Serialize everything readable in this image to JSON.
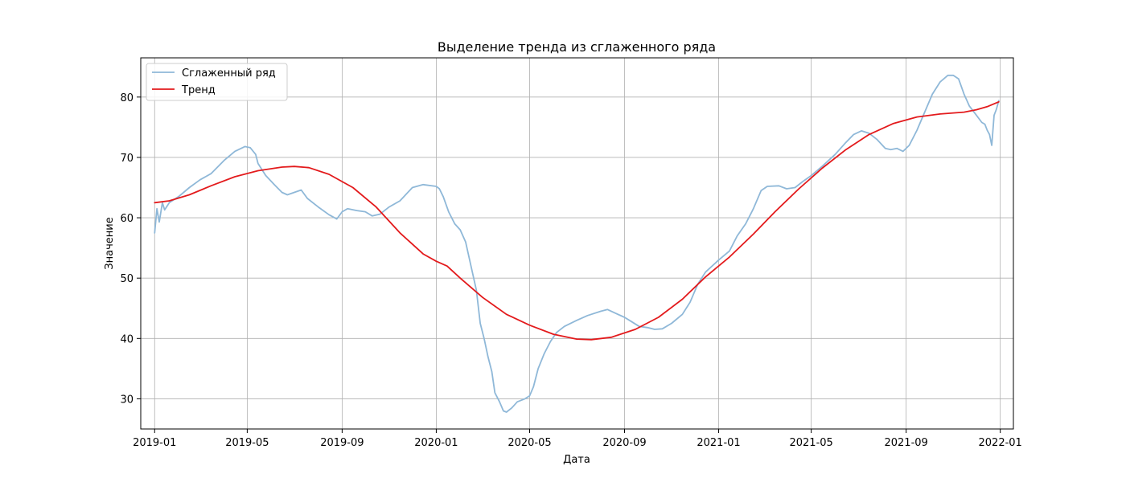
{
  "chart_data": {
    "type": "line",
    "title": "Выделение тренда из сглаженного ряда",
    "xlabel": "Дата",
    "ylabel": "Значение",
    "x_ticks": [
      "2019-01",
      "2019-05",
      "2019-09",
      "2020-01",
      "2020-05",
      "2020-09",
      "2021-01",
      "2021-05",
      "2021-09",
      "2022-01"
    ],
    "x_tick_dates": [
      "2019-01-01",
      "2019-05-01",
      "2019-09-01",
      "2020-01-01",
      "2020-05-01",
      "2020-09-01",
      "2021-01-01",
      "2021-05-01",
      "2021-09-01",
      "2022-01-01"
    ],
    "y_ticks": [
      30,
      40,
      50,
      60,
      70,
      80
    ],
    "xlim": [
      "2018-12-14",
      "2022-01-18"
    ],
    "ylim": [
      25,
      86.5
    ],
    "grid": true,
    "legend_position": "top-left",
    "series": [
      {
        "name": "Сглаженный ряд",
        "color": "#8fb8d8",
        "points": [
          [
            "2019-01-01",
            57.5
          ],
          [
            "2019-01-04",
            61.5
          ],
          [
            "2019-01-07",
            59.3
          ],
          [
            "2019-01-11",
            62.5
          ],
          [
            "2019-01-14",
            61.3
          ],
          [
            "2019-01-20",
            62.5
          ],
          [
            "2019-02-01",
            63.5
          ],
          [
            "2019-02-15",
            65.0
          ],
          [
            "2019-03-01",
            66.3
          ],
          [
            "2019-03-15",
            67.3
          ],
          [
            "2019-04-01",
            69.5
          ],
          [
            "2019-04-15",
            71.0
          ],
          [
            "2019-04-28",
            71.8
          ],
          [
            "2019-05-05",
            71.6
          ],
          [
            "2019-05-12",
            70.5
          ],
          [
            "2019-05-15",
            69.0
          ],
          [
            "2019-05-25",
            67.0
          ],
          [
            "2019-06-05",
            65.5
          ],
          [
            "2019-06-15",
            64.2
          ],
          [
            "2019-06-22",
            63.8
          ],
          [
            "2019-07-01",
            64.2
          ],
          [
            "2019-07-10",
            64.6
          ],
          [
            "2019-07-18",
            63.2
          ],
          [
            "2019-08-01",
            61.8
          ],
          [
            "2019-08-15",
            60.5
          ],
          [
            "2019-08-25",
            59.8
          ],
          [
            "2019-09-01",
            61.0
          ],
          [
            "2019-09-08",
            61.5
          ],
          [
            "2019-09-20",
            61.2
          ],
          [
            "2019-10-01",
            61.0
          ],
          [
            "2019-10-10",
            60.3
          ],
          [
            "2019-10-20",
            60.6
          ],
          [
            "2019-11-01",
            61.8
          ],
          [
            "2019-11-15",
            62.8
          ],
          [
            "2019-12-01",
            65.0
          ],
          [
            "2019-12-15",
            65.5
          ],
          [
            "2020-01-01",
            65.2
          ],
          [
            "2020-01-05",
            64.8
          ],
          [
            "2020-01-10",
            63.5
          ],
          [
            "2020-01-17",
            61.0
          ],
          [
            "2020-01-25",
            59.0
          ],
          [
            "2020-02-01",
            58.0
          ],
          [
            "2020-02-08",
            56.0
          ],
          [
            "2020-02-15",
            52.0
          ],
          [
            "2020-02-22",
            48.0
          ],
          [
            "2020-02-27",
            42.5
          ],
          [
            "2020-03-03",
            40.0
          ],
          [
            "2020-03-08",
            37.0
          ],
          [
            "2020-03-13",
            34.5
          ],
          [
            "2020-03-17",
            31.0
          ],
          [
            "2020-03-23",
            29.5
          ],
          [
            "2020-03-28",
            28.0
          ],
          [
            "2020-04-01",
            27.8
          ],
          [
            "2020-04-08",
            28.5
          ],
          [
            "2020-04-15",
            29.5
          ],
          [
            "2020-04-25",
            30.0
          ],
          [
            "2020-05-01",
            30.5
          ],
          [
            "2020-05-06",
            32.0
          ],
          [
            "2020-05-12",
            35.0
          ],
          [
            "2020-05-20",
            37.5
          ],
          [
            "2020-05-28",
            39.5
          ],
          [
            "2020-06-05",
            41.0
          ],
          [
            "2020-06-15",
            42.0
          ],
          [
            "2020-07-01",
            43.0
          ],
          [
            "2020-07-15",
            43.8
          ],
          [
            "2020-08-01",
            44.5
          ],
          [
            "2020-08-10",
            44.8
          ],
          [
            "2020-08-20",
            44.2
          ],
          [
            "2020-09-01",
            43.5
          ],
          [
            "2020-09-10",
            42.8
          ],
          [
            "2020-09-20",
            42.0
          ],
          [
            "2020-10-01",
            41.8
          ],
          [
            "2020-10-10",
            41.5
          ],
          [
            "2020-10-20",
            41.6
          ],
          [
            "2020-11-01",
            42.5
          ],
          [
            "2020-11-15",
            44.0
          ],
          [
            "2020-11-25",
            46.0
          ],
          [
            "2020-12-05",
            49.0
          ],
          [
            "2020-12-15",
            51.0
          ],
          [
            "2021-01-01",
            53.0
          ],
          [
            "2021-01-15",
            54.5
          ],
          [
            "2021-01-25",
            57.0
          ],
          [
            "2021-02-05",
            59.0
          ],
          [
            "2021-02-15",
            61.5
          ],
          [
            "2021-02-25",
            64.5
          ],
          [
            "2021-03-05",
            65.2
          ],
          [
            "2021-03-20",
            65.3
          ],
          [
            "2021-03-30",
            64.8
          ],
          [
            "2021-04-10",
            65.0
          ],
          [
            "2021-04-20",
            66.0
          ],
          [
            "2021-05-01",
            67.0
          ],
          [
            "2021-05-15",
            68.5
          ],
          [
            "2021-06-01",
            70.5
          ],
          [
            "2021-06-15",
            72.5
          ],
          [
            "2021-06-25",
            73.8
          ],
          [
            "2021-07-05",
            74.4
          ],
          [
            "2021-07-15",
            74.0
          ],
          [
            "2021-07-25",
            73.0
          ],
          [
            "2021-08-05",
            71.5
          ],
          [
            "2021-08-12",
            71.3
          ],
          [
            "2021-08-20",
            71.5
          ],
          [
            "2021-08-28",
            71.0
          ],
          [
            "2021-09-05",
            72.0
          ],
          [
            "2021-09-15",
            74.5
          ],
          [
            "2021-09-25",
            77.5
          ],
          [
            "2021-10-05",
            80.5
          ],
          [
            "2021-10-15",
            82.5
          ],
          [
            "2021-10-25",
            83.6
          ],
          [
            "2021-11-01",
            83.6
          ],
          [
            "2021-11-08",
            83.0
          ],
          [
            "2021-11-15",
            80.5
          ],
          [
            "2021-11-22",
            78.5
          ],
          [
            "2021-12-01",
            77.0
          ],
          [
            "2021-12-08",
            75.8
          ],
          [
            "2021-12-12",
            75.5
          ],
          [
            "2021-12-15",
            74.5
          ],
          [
            "2021-12-18",
            73.8
          ],
          [
            "2021-12-21",
            72.0
          ],
          [
            "2021-12-24",
            77.0
          ],
          [
            "2021-12-27",
            78.0
          ],
          [
            "2021-12-30",
            79.4
          ]
        ]
      },
      {
        "name": "Тренд",
        "color": "#e31a1c",
        "points": [
          [
            "2019-01-01",
            62.5
          ],
          [
            "2019-01-20",
            62.8
          ],
          [
            "2019-02-15",
            63.8
          ],
          [
            "2019-03-15",
            65.3
          ],
          [
            "2019-04-15",
            66.8
          ],
          [
            "2019-05-15",
            67.8
          ],
          [
            "2019-06-15",
            68.4
          ],
          [
            "2019-07-01",
            68.5
          ],
          [
            "2019-07-20",
            68.3
          ],
          [
            "2019-08-15",
            67.2
          ],
          [
            "2019-09-15",
            65.0
          ],
          [
            "2019-10-15",
            61.8
          ],
          [
            "2019-11-15",
            57.5
          ],
          [
            "2019-12-15",
            54.0
          ],
          [
            "2020-01-01",
            52.8
          ],
          [
            "2020-01-15",
            52.0
          ],
          [
            "2020-02-01",
            50.0
          ],
          [
            "2020-03-01",
            46.8
          ],
          [
            "2020-04-01",
            44.0
          ],
          [
            "2020-05-01",
            42.2
          ],
          [
            "2020-06-01",
            40.7
          ],
          [
            "2020-07-01",
            39.9
          ],
          [
            "2020-07-20",
            39.8
          ],
          [
            "2020-08-15",
            40.2
          ],
          [
            "2020-09-15",
            41.5
          ],
          [
            "2020-10-15",
            43.5
          ],
          [
            "2020-11-15",
            46.5
          ],
          [
            "2020-12-15",
            50.2
          ],
          [
            "2021-01-15",
            53.5
          ],
          [
            "2021-02-15",
            57.3
          ],
          [
            "2021-03-15",
            61.0
          ],
          [
            "2021-04-15",
            64.8
          ],
          [
            "2021-05-15",
            68.2
          ],
          [
            "2021-06-15",
            71.3
          ],
          [
            "2021-07-15",
            73.8
          ],
          [
            "2021-08-15",
            75.6
          ],
          [
            "2021-09-15",
            76.7
          ],
          [
            "2021-10-15",
            77.2
          ],
          [
            "2021-11-15",
            77.5
          ],
          [
            "2021-12-01",
            77.9
          ],
          [
            "2021-12-15",
            78.4
          ],
          [
            "2021-12-30",
            79.2
          ]
        ]
      }
    ]
  }
}
